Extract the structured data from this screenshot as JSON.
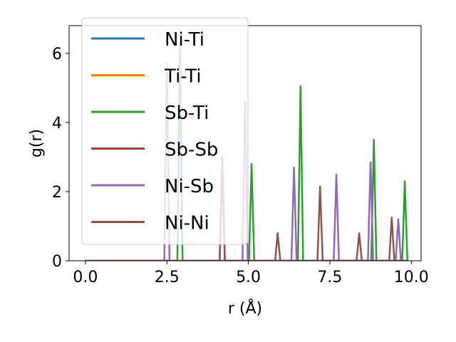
{
  "chart_data": {
    "type": "line",
    "title": "",
    "xlabel": "r (Å)",
    "ylabel": "g(r)",
    "xlim": [
      -0.5,
      10.3
    ],
    "ylim": [
      0,
      6.8
    ],
    "xticks": [
      0.0,
      2.5,
      5.0,
      7.5,
      10.0
    ],
    "xtick_labels": [
      "0.0",
      "2.5",
      "5.0",
      "7.5",
      "10.0"
    ],
    "yticks": [
      0,
      2,
      4,
      6
    ],
    "ytick_labels": [
      "0",
      "2",
      "4",
      "6"
    ],
    "grid": false,
    "legend": "upper-left",
    "series": [
      {
        "name": "Ni-Ti",
        "color": "#1f77b4",
        "peaks": []
      },
      {
        "name": "Ti-Ti",
        "color": "#ff7f0e",
        "peaks": []
      },
      {
        "name": "Sb-Ti",
        "color": "#2ca02c",
        "peaks": [
          [
            2.9,
            6.3
          ],
          [
            5.1,
            2.8
          ],
          [
            6.6,
            5.05
          ],
          [
            8.85,
            3.5
          ],
          [
            9.8,
            2.3
          ]
        ]
      },
      {
        "name": "Sb-Sb",
        "color": "#d62728",
        "peaks": [
          [
            4.2,
            3.0
          ]
        ]
      },
      {
        "name": "Ni-Sb",
        "color": "#9467bd",
        "peaks": [
          [
            2.5,
            5.7
          ],
          [
            4.9,
            4.6
          ],
          [
            6.4,
            2.7
          ],
          [
            7.7,
            2.5
          ],
          [
            8.75,
            2.85
          ],
          [
            9.6,
            1.2
          ]
        ]
      },
      {
        "name": "Ni-Ni",
        "color": "#8c564b",
        "peaks": [
          [
            4.2,
            2.9
          ],
          [
            5.9,
            0.8
          ],
          [
            7.2,
            2.15
          ],
          [
            8.4,
            0.8
          ],
          [
            9.4,
            1.25
          ]
        ]
      }
    ]
  }
}
